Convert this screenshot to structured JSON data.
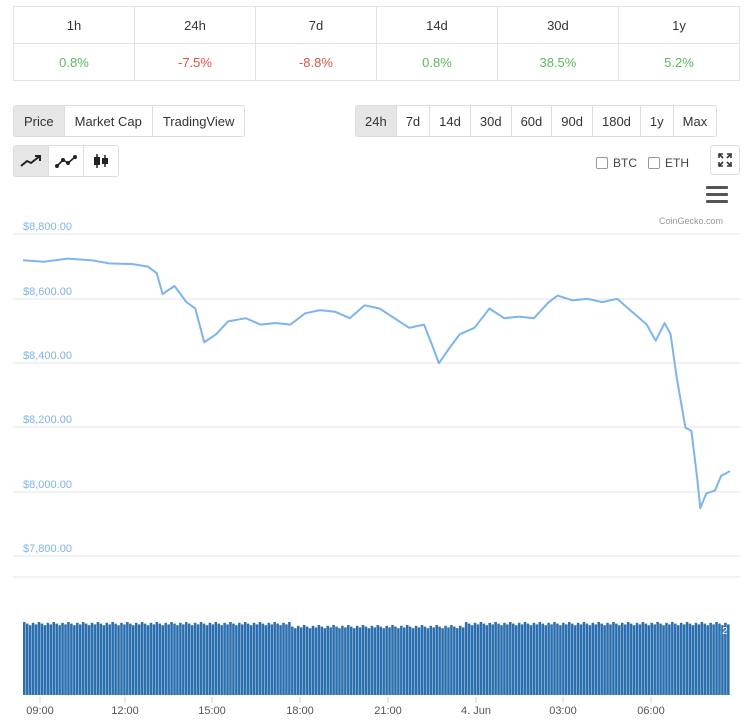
{
  "performance": [
    {
      "label": "1h",
      "value": "0.8%",
      "trend": "pos"
    },
    {
      "label": "24h",
      "value": "-7.5%",
      "trend": "neg"
    },
    {
      "label": "7d",
      "value": "-8.8%",
      "trend": "neg"
    },
    {
      "label": "14d",
      "value": "0.8%",
      "trend": "pos"
    },
    {
      "label": "30d",
      "value": "38.5%",
      "trend": "pos"
    },
    {
      "label": "1y",
      "value": "5.2%",
      "trend": "pos"
    }
  ],
  "tabs": [
    "Price",
    "Market Cap",
    "TradingView"
  ],
  "active_tab": "Price",
  "ranges": [
    "24h",
    "7d",
    "14d",
    "30d",
    "60d",
    "90d",
    "180d",
    "1y",
    "Max"
  ],
  "active_range": "24h",
  "chart_types": [
    "line-chart-icon",
    "smooth-line-icon",
    "candlestick-icon"
  ],
  "compare": {
    "btc": "BTC",
    "eth": "ETH"
  },
  "credit": "CoinGecko.com",
  "colors": {
    "line": "#7cb5ec",
    "volume": "#2b6fae",
    "positive": "#5cb85c",
    "negative": "#e15241"
  },
  "chart_data": {
    "type": "line",
    "x_ticks": [
      "09:00",
      "12:00",
      "15:00",
      "18:00",
      "21:00",
      "4. Jun",
      "03:00",
      "06:00"
    ],
    "y_ticks": [
      "$8,800.00",
      "$8,600.00",
      "$8,400.00",
      "$8,200.00",
      "$8,000.00",
      "$7,800.00"
    ],
    "ylim": [
      7800,
      8800
    ],
    "xlim": [
      8.5,
      32.3
    ],
    "series": [
      {
        "values": [
          [
            8.5,
            8700
          ],
          [
            9.2,
            8695
          ],
          [
            10.0,
            8705
          ],
          [
            10.8,
            8700
          ],
          [
            11.4,
            8690
          ],
          [
            12.2,
            8688
          ],
          [
            12.7,
            8680
          ],
          [
            13.0,
            8660
          ],
          [
            13.2,
            8595
          ],
          [
            13.6,
            8620
          ],
          [
            14.0,
            8570
          ],
          [
            14.3,
            8550
          ],
          [
            14.6,
            8445
          ],
          [
            15.0,
            8470
          ],
          [
            15.4,
            8510
          ],
          [
            16.0,
            8520
          ],
          [
            16.5,
            8500
          ],
          [
            17.0,
            8505
          ],
          [
            17.5,
            8500
          ],
          [
            18.0,
            8535
          ],
          [
            18.5,
            8545
          ],
          [
            19.0,
            8540
          ],
          [
            19.5,
            8520
          ],
          [
            20.0,
            8560
          ],
          [
            20.5,
            8550
          ],
          [
            21.0,
            8520
          ],
          [
            21.5,
            8490
          ],
          [
            22.0,
            8500
          ],
          [
            22.3,
            8430
          ],
          [
            22.5,
            8380
          ],
          [
            22.8,
            8420
          ],
          [
            23.2,
            8470
          ],
          [
            23.7,
            8490
          ],
          [
            24.2,
            8550
          ],
          [
            24.7,
            8520
          ],
          [
            25.2,
            8525
          ],
          [
            25.7,
            8520
          ],
          [
            26.2,
            8570
          ],
          [
            26.5,
            8590
          ],
          [
            27.0,
            8575
          ],
          [
            27.5,
            8580
          ],
          [
            28.0,
            8570
          ],
          [
            28.5,
            8580
          ],
          [
            29.0,
            8540
          ],
          [
            29.5,
            8500
          ],
          [
            29.8,
            8450
          ],
          [
            30.1,
            8505
          ],
          [
            30.3,
            8470
          ],
          [
            30.5,
            8340
          ],
          [
            30.8,
            8180
          ],
          [
            31.0,
            8170
          ],
          [
            31.2,
            8020
          ],
          [
            31.3,
            7930
          ],
          [
            31.5,
            7975
          ],
          [
            31.8,
            7985
          ],
          [
            32.0,
            8030
          ],
          [
            32.3,
            8045
          ]
        ]
      }
    ],
    "volume_label": "2"
  }
}
